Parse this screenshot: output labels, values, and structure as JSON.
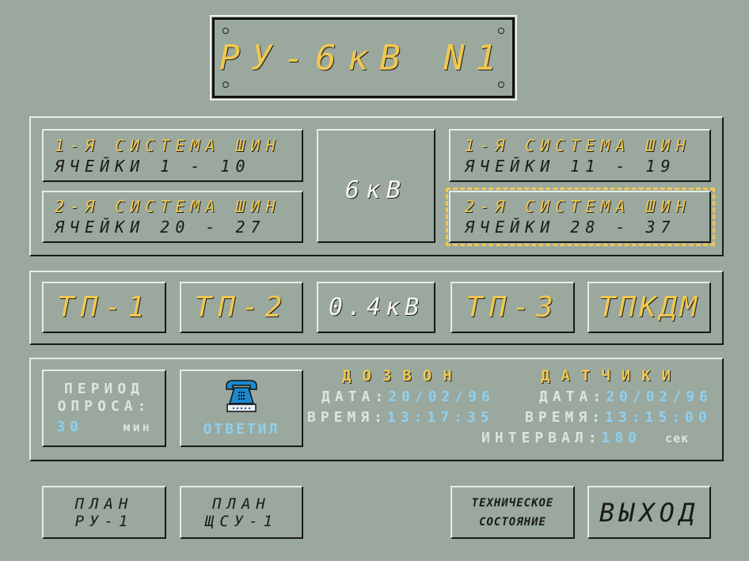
{
  "title": "РУ-6кВ N1",
  "panel_6kv": {
    "left_top": {
      "line1": "1-Я СИСТЕМА ШИН",
      "line2": "ЯЧЕЙКИ 1 - 10"
    },
    "left_bottom": {
      "line1": "2-Я СИСТЕМА ШИН",
      "line2": "ЯЧЕЙКИ 20 - 27"
    },
    "center": "6кВ",
    "right_top": {
      "line1": "1-Я СИСТЕМА ШИН",
      "line2": "ЯЧЕЙКИ 11 - 19"
    },
    "right_bottom": {
      "line1": "2-Я СИСТЕМА ШИН",
      "line2": "ЯЧЕЙКИ 28 - 37"
    }
  },
  "panel_04kv": {
    "tp1": "ТП-1",
    "tp2": "ТП-2",
    "center": "0.4кВ",
    "tp3": "ТП-3",
    "tpkdm": "ТПКДМ"
  },
  "status": {
    "period_line1": "ПЕРИОД",
    "period_line2": "ОПРОСА:",
    "period_value": "30",
    "period_unit": "мин",
    "phone_status": "ОТВЕТИЛ",
    "phone_icon": "telephone-icon",
    "dial_header": "ДОЗВОН",
    "sensors_header": "ДАТЧИКИ",
    "date_label": "ДАТА:",
    "time_label": "ВРЕМЯ:",
    "dial_date": "20/02/96",
    "dial_time": "13:17:35",
    "sensors_date": "20/02/96",
    "sensors_time": "13:15:00",
    "interval_label": "ИНТЕРВАЛ:",
    "interval_value": "180",
    "interval_unit": "сек"
  },
  "bottom": {
    "plan_ru_1": "ПЛАН",
    "plan_ru_2": "РУ-1",
    "plan_shsu_1": "ПЛАН",
    "plan_shsu_2": "ЩСУ-1",
    "tech_1": "ТЕХНИЧЕСКОЕ",
    "tech_2": "СОСТОЯНИЕ",
    "exit": "ВЫХОД"
  },
  "colors": {
    "background": "#9aa89e",
    "accent_yellow": "#f0c850",
    "value_blue": "#8fd0f0"
  }
}
